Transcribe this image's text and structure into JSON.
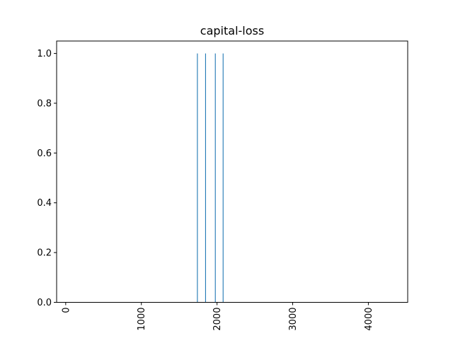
{
  "chart_data": {
    "type": "bar",
    "title": "capital-loss",
    "xlabel": "",
    "ylabel": "",
    "xlim": [
      -120,
      4520
    ],
    "ylim": [
      0.0,
      1.05
    ],
    "x_ticks": [
      0,
      1000,
      2000,
      3000,
      4000
    ],
    "x_tick_labels": [
      "0",
      "1000",
      "2000",
      "3000",
      "4000"
    ],
    "y_ticks": [
      0.0,
      0.2,
      0.4,
      0.6,
      0.8,
      1.0
    ],
    "y_tick_labels": [
      "0.0",
      "0.2",
      "0.4",
      "0.6",
      "0.8",
      "1.0"
    ],
    "x_tick_rotation": "vertical",
    "grid": false,
    "legend": "none",
    "bar_color": "#1f77b4",
    "x": [
      1740,
      1848,
      1977,
      2080
    ],
    "values": [
      1.0,
      1.0,
      1.0,
      1.0
    ]
  }
}
